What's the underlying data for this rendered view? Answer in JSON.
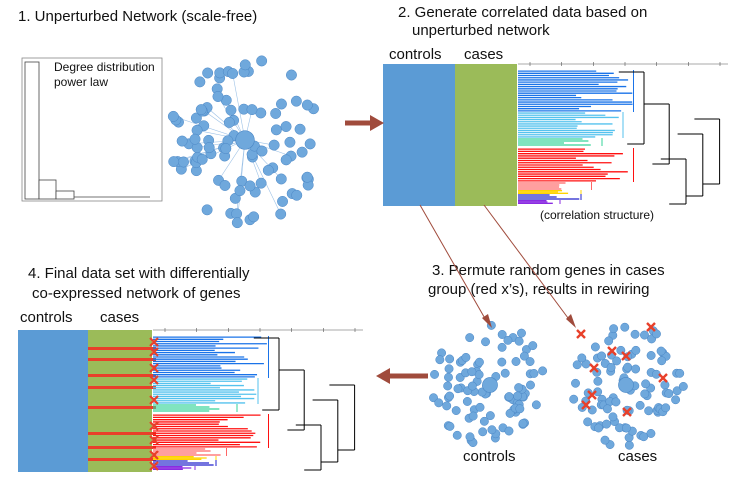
{
  "steps": {
    "step1_title": "1. Unperturbed Network (scale-free)",
    "step2_title_line1": "2. Generate correlated data based on",
    "step2_title_line2": "unperturbed network",
    "step3_title_line1": "3. Permute random genes in cases",
    "step3_title_line2": "group (red x’s), results in rewiring",
    "step4_title_line1": "4. Final data set with differentially",
    "step4_title_line2": "co-expressed network of genes"
  },
  "degree_plot": {
    "label_line1": "Degree distribution",
    "label_line2": "power law"
  },
  "data_blocks": {
    "controls_label": "controls",
    "cases_label": "cases",
    "correlation_caption": "(correlation structure)",
    "controls_color": "#5b9bd5",
    "cases_color": "#9bbb59"
  },
  "networks": {
    "controls_label": "controls",
    "cases_label": "cases",
    "node_color": "#6fa8dc",
    "marker_color": "#e8402a"
  },
  "arrows": {
    "color": "#a04b3c"
  },
  "dendrogram_colors": [
    "#1a73e8",
    "#55c2ee",
    "#34d399",
    "#ff1010",
    "#ff6666",
    "#ffd400",
    "#2222cc",
    "#8a2be2",
    "#000000"
  ]
}
